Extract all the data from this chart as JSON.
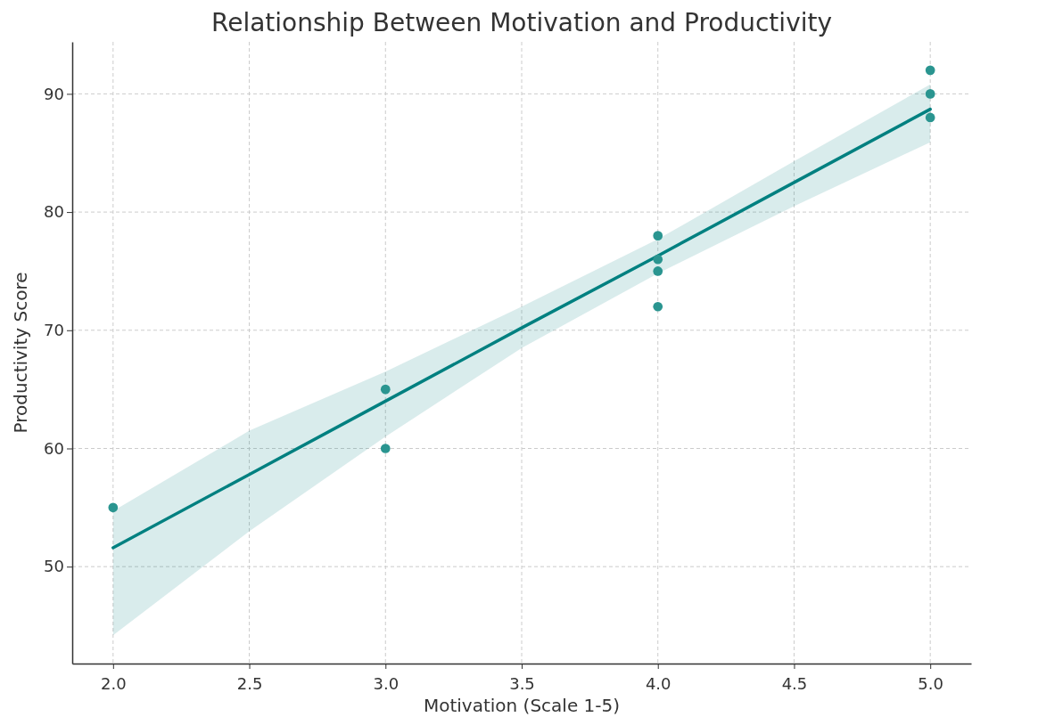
{
  "chart_data": {
    "type": "scatter",
    "title": "Relationship Between Motivation and Productivity",
    "xlabel": "Motivation (Scale 1-5)",
    "ylabel": "Productivity Score",
    "xlim": [
      1.85,
      5.15
    ],
    "ylim": [
      41.8,
      94.4
    ],
    "xticks": [
      {
        "value": 2,
        "label": "2.0"
      },
      {
        "value": 2.5,
        "label": "2.5"
      },
      {
        "value": 3,
        "label": "3.0"
      },
      {
        "value": 3.5,
        "label": "3.5"
      },
      {
        "value": 4,
        "label": "4.0"
      },
      {
        "value": 4.5,
        "label": "4.5"
      },
      {
        "value": 5,
        "label": "5.0"
      }
    ],
    "yticks": [
      50,
      60,
      70,
      80,
      90
    ],
    "grid": true,
    "marker": "circle",
    "series": [
      {
        "type": "line",
        "marker": "none",
        "color": "#008080",
        "x": [
          2,
          2.5,
          3,
          3.5,
          4,
          4.5,
          5
        ],
        "values": [
          51.6,
          57.8,
          64.0,
          70.2,
          76.3,
          82.5,
          88.7
        ],
        "lower": [
          44.2,
          53.0,
          61.0,
          68.5,
          74.8,
          80.5,
          85.9
        ],
        "upper": [
          54.7,
          61.5,
          66.5,
          72.0,
          77.7,
          84.3,
          90.8
        ]
      },
      {
        "color": "#2a9590",
        "x": [
          2,
          3,
          3,
          4,
          4,
          4,
          4,
          5,
          5,
          5
        ],
        "values": [
          55,
          65,
          60,
          78,
          76,
          75,
          72,
          92,
          90,
          88
        ]
      }
    ]
  }
}
